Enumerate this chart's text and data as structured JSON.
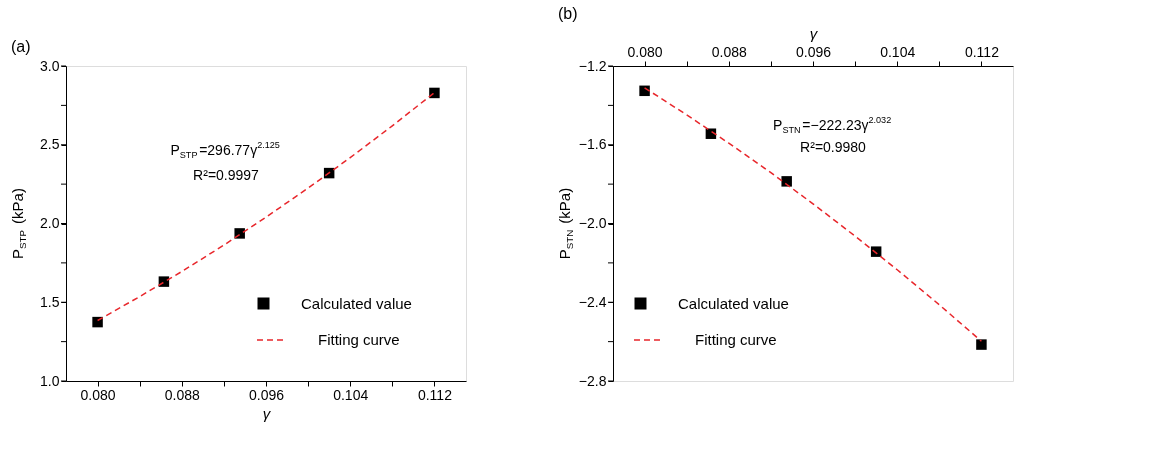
{
  "chart_data": [
    {
      "type": "scatter",
      "title": "(a)",
      "xlabel": "γ",
      "ylabel": "P$_{STP}$ (kPa)",
      "xlim": [
        0.077,
        0.115
      ],
      "xticks": [
        {
          "value": 0.08,
          "label": "0.080"
        },
        {
          "value": 0.084,
          "label": null
        },
        {
          "value": 0.088,
          "label": "0.088"
        },
        {
          "value": 0.092,
          "label": null
        },
        {
          "value": 0.096,
          "label": "0.096"
        },
        {
          "value": 0.1,
          "label": null
        },
        {
          "value": 0.104,
          "label": "0.104"
        },
        {
          "value": 0.108,
          "label": null
        },
        {
          "value": 0.112,
          "label": "0.112"
        }
      ],
      "ylim": [
        1.0,
        3.0
      ],
      "yticks": [
        {
          "value": 1.0,
          "label": "1.0"
        },
        {
          "value": 1.25,
          "label": null
        },
        {
          "value": 1.5,
          "label": "1.5"
        },
        {
          "value": 1.75,
          "label": null
        },
        {
          "value": 2.0,
          "label": "2.0"
        },
        {
          "value": 2.25,
          "label": null
        },
        {
          "value": 2.5,
          "label": "2.5"
        },
        {
          "value": 2.75,
          "label": null
        },
        {
          "value": 3.0,
          "label": "3.0"
        }
      ],
      "grid": false,
      "legend": "bottom right",
      "annotations": [
        "P$_{STP}$=296.77γ$^{2.125}$",
        "R²=0.9997"
      ],
      "series": [
        {
          "name": "Calculated value",
          "type": "scatter",
          "marker": "square",
          "color": "#000000",
          "x": [
            0.08,
            0.0863,
            0.0935,
            0.102,
            0.112
          ],
          "values": [
            1.374,
            1.631,
            1.937,
            2.32,
            2.829
          ]
        },
        {
          "name": "Fitting curve",
          "type": "line",
          "marker": "none",
          "line_style": "dashed",
          "color": "#e8262b",
          "x": [
            0.08,
            0.084,
            0.088,
            0.092,
            0.096,
            0.1,
            0.104,
            0.108,
            0.112
          ],
          "values": [
            1.384,
            1.536,
            1.695,
            1.863,
            2.04,
            2.225,
            2.418,
            2.62,
            2.831
          ]
        }
      ]
    },
    {
      "type": "scatter",
      "title": "(b)",
      "xlabel": "γ",
      "ylabel": "P$_{STN}$ (kPa)",
      "xlim": [
        0.077,
        0.115
      ],
      "xticks": [
        {
          "value": 0.08,
          "label": "0.080"
        },
        {
          "value": 0.084,
          "label": null
        },
        {
          "value": 0.088,
          "label": "0.088"
        },
        {
          "value": 0.092,
          "label": null
        },
        {
          "value": 0.096,
          "label": "0.096"
        },
        {
          "value": 0.1,
          "label": null
        },
        {
          "value": 0.104,
          "label": "0.104"
        },
        {
          "value": 0.108,
          "label": null
        },
        {
          "value": 0.112,
          "label": "0.112"
        }
      ],
      "ylim": [
        -2.8,
        -1.2
      ],
      "yticks": [
        {
          "value": -2.8,
          "label": "−2.8"
        },
        {
          "value": -2.6,
          "label": null
        },
        {
          "value": -2.4,
          "label": "−2.4"
        },
        {
          "value": -2.2,
          "label": null
        },
        {
          "value": -2.0,
          "label": "−2.0"
        },
        {
          "value": -1.8,
          "label": null
        },
        {
          "value": -1.6,
          "label": "−1.6"
        },
        {
          "value": -1.4,
          "label": null
        },
        {
          "value": -1.2,
          "label": "−1.2"
        }
      ],
      "grid": false,
      "legend": "bottom left",
      "annotations": [
        "P$_{STN}$=−222.23γ$^{2.032}$",
        "R²=0.9980"
      ],
      "series": [
        {
          "name": "Calculated value",
          "type": "scatter",
          "marker": "square",
          "color": "#000000",
          "x": [
            0.08,
            0.0863,
            0.0935,
            0.102,
            0.112
          ],
          "values": [
            -1.326,
            -1.544,
            -1.786,
            -2.143,
            -2.615
          ]
        },
        {
          "name": "Fitting curve",
          "type": "line",
          "marker": "none",
          "line_style": "dashed",
          "color": "#e8262b",
          "x": [
            0.08,
            0.084,
            0.088,
            0.092,
            0.096,
            0.1,
            0.104,
            0.108,
            0.112
          ],
          "values": [
            -1.311,
            -1.448,
            -1.592,
            -1.742,
            -1.9,
            -2.064,
            -2.235,
            -2.413,
            -2.598
          ]
        }
      ]
    }
  ]
}
